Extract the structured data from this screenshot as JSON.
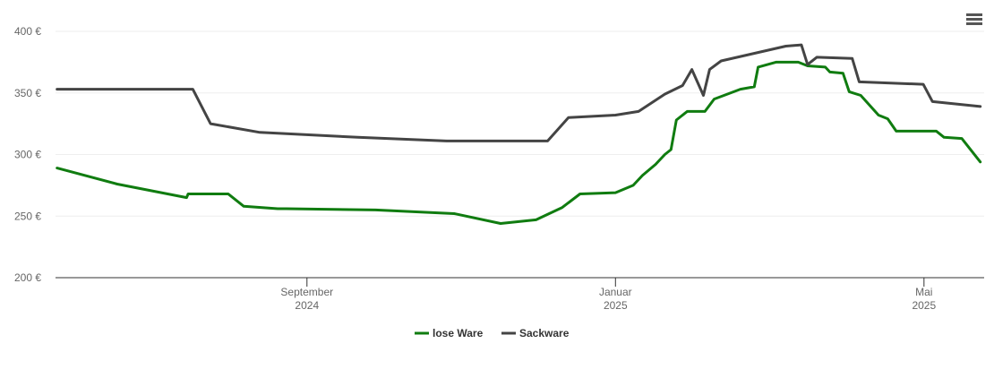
{
  "chart_data": {
    "type": "line",
    "xlim": [
      5.74,
      17.78
    ],
    "xticks": [
      {
        "value": 9,
        "label": "September",
        "sublabel": "2024"
      },
      {
        "value": 13,
        "label": "Januar",
        "sublabel": "2025"
      },
      {
        "value": 17,
        "label": "Mai",
        "sublabel": "2025"
      }
    ],
    "ylim": [
      200,
      400
    ],
    "yticks": [
      {
        "value": 200,
        "label": "200 €"
      },
      {
        "value": 250,
        "label": "250 €"
      },
      {
        "value": 300,
        "label": "300 €"
      },
      {
        "value": 350,
        "label": "350 €"
      },
      {
        "value": 400,
        "label": "400 €"
      }
    ],
    "grid": true,
    "legend": "bottom",
    "series": [
      {
        "name": "lose Ware",
        "color": "#107c10",
        "x": [
          5.76,
          6.54,
          7.44,
          7.46,
          7.98,
          8.18,
          8.62,
          8.73,
          9.89,
          10.91,
          11.51,
          11.97,
          12.31,
          12.54,
          13.0,
          13.23,
          13.35,
          13.52,
          13.64,
          13.72,
          13.79,
          13.93,
          14.16,
          14.28,
          14.62,
          14.8,
          14.85,
          15.08,
          15.37,
          15.49,
          15.72,
          15.78,
          15.95,
          16.03,
          16.18,
          16.41,
          16.53,
          16.64,
          17.16,
          17.26,
          17.49,
          17.73
        ],
        "values": [
          289,
          276,
          265,
          268,
          268,
          258,
          256,
          256,
          255,
          252,
          244,
          247,
          257,
          268,
          269,
          275,
          283,
          292,
          300,
          304,
          328,
          335,
          335,
          345,
          353,
          355,
          371,
          375,
          375,
          372,
          371,
          367,
          366,
          351,
          348,
          332,
          329,
          319,
          319,
          314,
          313,
          294
        ]
      },
      {
        "name": "Sackware",
        "color": "#444444",
        "x": [
          5.76,
          7.52,
          7.75,
          8.39,
          9.66,
          10.81,
          12.12,
          12.39,
          13.0,
          13.3,
          13.64,
          13.87,
          13.99,
          14.14,
          14.22,
          14.37,
          14.86,
          15.21,
          15.41,
          15.49,
          15.61,
          16.07,
          16.16,
          16.99,
          17.11,
          17.73
        ],
        "values": [
          353,
          353,
          325,
          318,
          314,
          311,
          311,
          330,
          332,
          335,
          349,
          356,
          369,
          348,
          369,
          376,
          383,
          388,
          389,
          373,
          379,
          378,
          359,
          357,
          343,
          339
        ]
      }
    ]
  }
}
